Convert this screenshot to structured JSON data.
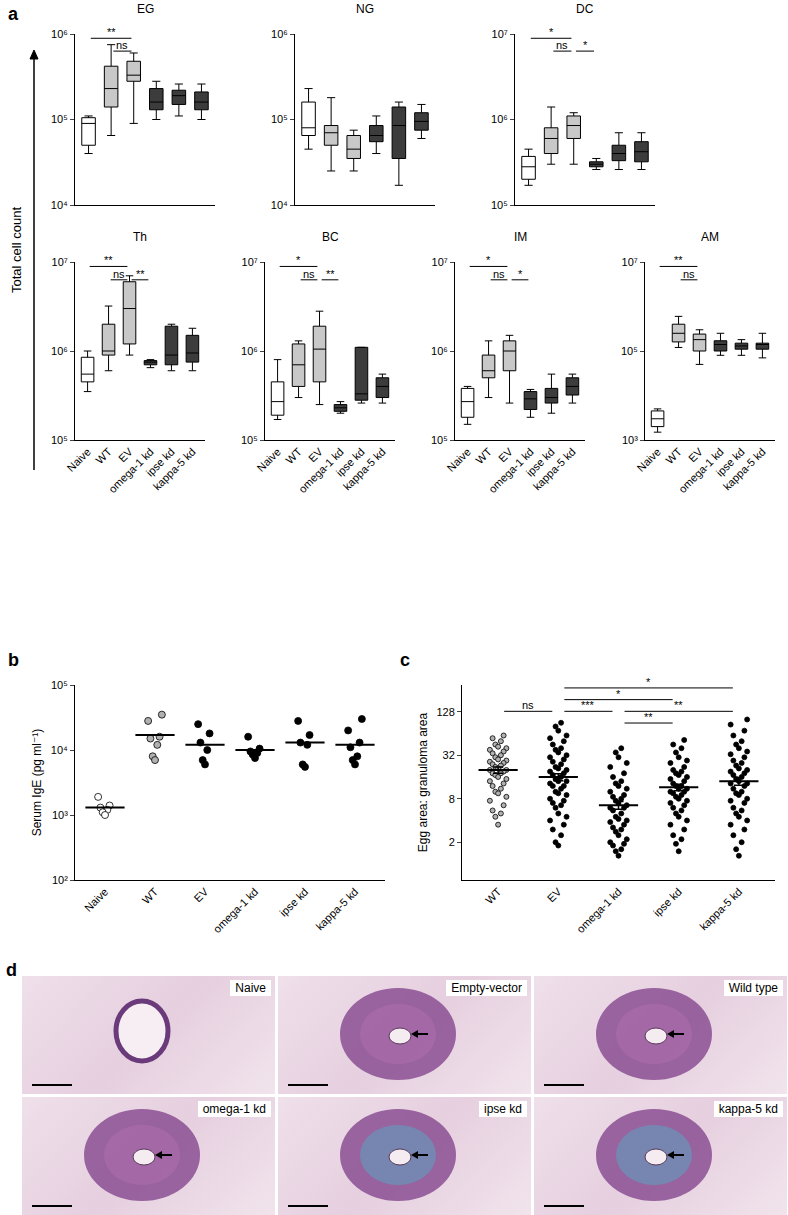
{
  "panel_a": {
    "label": "a",
    "ylabel": "Total cell count"
  },
  "chart_data": [
    {
      "type": "box",
      "title": "EG",
      "categories": [
        "Naive",
        "WT",
        "EV",
        "omega-1 kd",
        "ipse kd",
        "kappa-5 kd"
      ],
      "colors": [
        "#ffffff",
        "#c8c8c8",
        "#c8c8c8",
        "#3c3c3c",
        "#3c3c3c",
        "#3c3c3c"
      ],
      "min": [
        40000,
        65000,
        90000,
        100000,
        110000,
        100000
      ],
      "q1": [
        50000,
        140000,
        280000,
        130000,
        150000,
        130000
      ],
      "median": [
        90000,
        230000,
        330000,
        160000,
        190000,
        160000
      ],
      "q3": [
        105000,
        420000,
        480000,
        230000,
        220000,
        210000
      ],
      "max": [
        110000,
        750000,
        600000,
        280000,
        260000,
        260000
      ],
      "log": "y",
      "ylim": [
        10000,
        1000000
      ],
      "yticks": [
        {
          "value": 10000,
          "label": "10⁴"
        },
        {
          "value": 100000,
          "label": "10⁵"
        },
        {
          "value": 1000000,
          "label": "10⁶"
        }
      ],
      "annotations": [
        {
          "from": "Naive",
          "to": "EV",
          "label": "**"
        },
        {
          "from": "WT",
          "to": "EV",
          "label": "ns"
        }
      ],
      "tick_labels": "y"
    },
    {
      "type": "box",
      "title": "NG",
      "categories": [
        "Naive",
        "WT",
        "EV",
        "omega-1 kd",
        "ipse kd",
        "kappa-5 kd"
      ],
      "colors": [
        "#ffffff",
        "#c8c8c8",
        "#c8c8c8",
        "#3c3c3c",
        "#3c3c3c",
        "#3c3c3c"
      ],
      "min": [
        45000,
        25000,
        25000,
        40000,
        17000,
        60000
      ],
      "q1": [
        65000,
        50000,
        35000,
        55000,
        35000,
        75000
      ],
      "median": [
        80000,
        70000,
        45000,
        65000,
        85000,
        95000
      ],
      "q3": [
        160000,
        85000,
        65000,
        85000,
        140000,
        120000
      ],
      "max": [
        230000,
        180000,
        75000,
        110000,
        160000,
        150000
      ],
      "log": "y",
      "ylim": [
        10000,
        1000000
      ],
      "yticks": [
        {
          "value": 10000,
          "label": "10⁴"
        },
        {
          "value": 100000,
          "label": "10⁵"
        },
        {
          "value": 1000000,
          "label": "10⁶"
        }
      ],
      "tick_labels": "y"
    },
    {
      "type": "box",
      "title": "DC",
      "categories": [
        "Naive",
        "WT",
        "EV",
        "omega-1 kd",
        "ipse kd",
        "kappa-5 kd"
      ],
      "colors": [
        "#ffffff",
        "#c8c8c8",
        "#c8c8c8",
        "#3c3c3c",
        "#3c3c3c",
        "#3c3c3c"
      ],
      "min": [
        170000,
        300000,
        300000,
        260000,
        260000,
        260000
      ],
      "q1": [
        200000,
        400000,
        600000,
        280000,
        330000,
        320000
      ],
      "median": [
        280000,
        600000,
        850000,
        300000,
        400000,
        420000
      ],
      "q3": [
        370000,
        800000,
        1100000,
        320000,
        500000,
        550000
      ],
      "max": [
        450000,
        1400000,
        1200000,
        350000,
        700000,
        700000
      ],
      "log": "y",
      "ylim": [
        100000,
        10000000
      ],
      "yticks": [
        {
          "value": 100000,
          "label": "10⁵"
        },
        {
          "value": 1000000,
          "label": "10⁶"
        },
        {
          "value": 10000000,
          "label": "10⁷"
        }
      ],
      "annotations": [
        {
          "from": "Naive",
          "to": "EV",
          "label": "*"
        },
        {
          "from": "WT",
          "to": "EV",
          "label": "ns"
        },
        {
          "from": "EV",
          "to": "omega-1 kd",
          "label": "*"
        }
      ],
      "tick_labels": "y"
    },
    {
      "type": "box",
      "title": "Th",
      "categories": [
        "Naive",
        "WT",
        "EV",
        "omega-1 kd",
        "ipse kd",
        "kappa-5 kd"
      ],
      "colors": [
        "#ffffff",
        "#c8c8c8",
        "#c8c8c8",
        "#3c3c3c",
        "#3c3c3c",
        "#3c3c3c"
      ],
      "min": [
        350000,
        600000,
        900000,
        650000,
        600000,
        600000
      ],
      "q1": [
        450000,
        900000,
        1200000,
        700000,
        700000,
        750000
      ],
      "median": [
        550000,
        1000000,
        3000000,
        750000,
        900000,
        950000
      ],
      "q3": [
        850000,
        2000000,
        6000000,
        780000,
        1900000,
        1500000
      ],
      "max": [
        1000000,
        3200000,
        7000000,
        800000,
        2000000,
        1800000
      ],
      "log": "y",
      "ylim": [
        100000,
        10000000
      ],
      "yticks": [
        {
          "value": 100000,
          "label": "10⁵"
        },
        {
          "value": 1000000,
          "label": "10⁶"
        },
        {
          "value": 10000000,
          "label": "10⁷"
        }
      ],
      "annotations": [
        {
          "from": "Naive",
          "to": "EV",
          "label": "**"
        },
        {
          "from": "WT",
          "to": "EV",
          "label": "ns"
        },
        {
          "from": "EV",
          "to": "omega-1 kd",
          "label": "**"
        }
      ]
    },
    {
      "type": "box",
      "title": "BC",
      "categories": [
        "Naive",
        "WT",
        "EV",
        "omega-1 kd",
        "ipse kd",
        "kappa-5 kd"
      ],
      "colors": [
        "#ffffff",
        "#c8c8c8",
        "#c8c8c8",
        "#3c3c3c",
        "#3c3c3c",
        "#3c3c3c"
      ],
      "min": [
        170000,
        300000,
        250000,
        200000,
        260000,
        260000
      ],
      "q1": [
        190000,
        400000,
        450000,
        210000,
        280000,
        300000
      ],
      "median": [
        270000,
        700000,
        1050000,
        230000,
        330000,
        400000
      ],
      "q3": [
        450000,
        1200000,
        1900000,
        250000,
        1100000,
        500000
      ],
      "max": [
        800000,
        1300000,
        2800000,
        270000,
        1100000,
        550000
      ],
      "log": "y",
      "ylim": [
        100000,
        10000000
      ],
      "yticks": [
        {
          "value": 100000,
          "label": "10⁵"
        },
        {
          "value": 1000000,
          "label": "10⁶"
        },
        {
          "value": 10000000,
          "label": "10⁷"
        }
      ],
      "annotations": [
        {
          "from": "Naive",
          "to": "EV",
          "label": "*"
        },
        {
          "from": "WT",
          "to": "EV",
          "label": "ns"
        },
        {
          "from": "EV",
          "to": "omega-1 kd",
          "label": "**"
        }
      ]
    },
    {
      "type": "box",
      "title": "IM",
      "categories": [
        "Naive",
        "WT",
        "EV",
        "omega-1 kd",
        "ipse kd",
        "kappa-5 kd"
      ],
      "colors": [
        "#ffffff",
        "#c8c8c8",
        "#c8c8c8",
        "#3c3c3c",
        "#3c3c3c",
        "#3c3c3c"
      ],
      "min": [
        150000,
        300000,
        260000,
        180000,
        200000,
        260000
      ],
      "q1": [
        180000,
        500000,
        600000,
        220000,
        260000,
        320000
      ],
      "median": [
        270000,
        600000,
        1000000,
        290000,
        300000,
        400000
      ],
      "q3": [
        380000,
        900000,
        1300000,
        350000,
        380000,
        500000
      ],
      "max": [
        400000,
        1300000,
        1500000,
        370000,
        550000,
        550000
      ],
      "log": "y",
      "ylim": [
        100000,
        10000000
      ],
      "yticks": [
        {
          "value": 100000,
          "label": "10⁵"
        },
        {
          "value": 1000000,
          "label": "10⁶"
        },
        {
          "value": 10000000,
          "label": "10⁷"
        }
      ],
      "annotations": [
        {
          "from": "Naive",
          "to": "EV",
          "label": "*"
        },
        {
          "from": "WT",
          "to": "EV",
          "label": "ns"
        },
        {
          "from": "EV",
          "to": "omega-1 kd",
          "label": "*"
        }
      ]
    },
    {
      "type": "box",
      "title": "AM",
      "categories": [
        "Naive",
        "WT",
        "EV",
        "omega-1 kd",
        "ipse kd",
        "kappa-5 kd"
      ],
      "colors": [
        "#ffffff",
        "#c8c8c8",
        "#c8c8c8",
        "#3c3c3c",
        "#3c3c3c",
        "#3c3c3c"
      ],
      "min": [
        1500,
        120000,
        50000,
        80000,
        80000,
        70000
      ],
      "q1": [
        2000,
        160000,
        100000,
        100000,
        110000,
        110000
      ],
      "median": [
        3000,
        250000,
        180000,
        140000,
        130000,
        140000
      ],
      "q3": [
        4500,
        400000,
        240000,
        170000,
        150000,
        150000
      ],
      "max": [
        5000,
        600000,
        300000,
        250000,
        180000,
        250000
      ],
      "log": "y",
      "ylim": [
        1000,
        10000000
      ],
      "yticks": [
        {
          "value": 1000,
          "label": "10³"
        },
        {
          "value": 100000,
          "label": "10⁵"
        },
        {
          "value": 10000000,
          "label": "10⁷"
        }
      ],
      "annotations": [
        {
          "from": "Naive",
          "to": "EV",
          "label": "**"
        },
        {
          "from": "WT",
          "to": "EV",
          "label": "ns"
        }
      ]
    },
    {
      "type": "scatter",
      "panel_label": "b",
      "categories": [
        "Naive",
        "WT",
        "EV",
        "omega-1 kd",
        "ipse kd",
        "kappa-5 kd"
      ],
      "colors": [
        "#ffffff",
        "#b0b0b0",
        "#000000",
        "#000000",
        "#000000",
        "#000000"
      ],
      "values": [
        [
          1900,
          1400,
          1300,
          1200,
          1100,
          1000
        ],
        [
          35000,
          28000,
          16000,
          15000,
          12000,
          8000,
          7000
        ],
        [
          25000,
          18000,
          13000,
          10000,
          7000,
          6000
        ],
        [
          16000,
          10500,
          9500,
          9000,
          8500,
          7500
        ],
        [
          28000,
          17000,
          13000,
          12000,
          6000,
          5500
        ],
        [
          30000,
          20000,
          13000,
          11000,
          8000,
          7000,
          6000
        ]
      ],
      "means": [
        1300,
        17000,
        12000,
        10000,
        13000,
        12000
      ],
      "ylabel": "Serum IgE (pg ml⁻¹)",
      "log": "y",
      "ylim": [
        100,
        100000
      ],
      "yticks": [
        {
          "value": 100,
          "label": "10²"
        },
        {
          "value": 1000,
          "label": "10³"
        },
        {
          "value": 10000,
          "label": "10⁴"
        },
        {
          "value": 100000,
          "label": "10⁵"
        }
      ]
    },
    {
      "type": "scatter",
      "panel_label": "c",
      "categories": [
        "WT",
        "EV",
        "omega-1 kd",
        "ipse kd",
        "kappa-5 kd"
      ],
      "colors": [
        "#b0b0b0",
        "#000000",
        "#000000",
        "#000000",
        "#000000"
      ],
      "values": [
        [
          60,
          55,
          50,
          45,
          42,
          40,
          38,
          36,
          34,
          32,
          30,
          28,
          27,
          26,
          25,
          24,
          23,
          22,
          21,
          20,
          20,
          19,
          18,
          18,
          17,
          16,
          15,
          14,
          13,
          12,
          11,
          10,
          9.5,
          8.5,
          7.5,
          6.5,
          5.5,
          5,
          4.5,
          3.5
        ],
        [
          90,
          80,
          70,
          60,
          55,
          50,
          45,
          40,
          38,
          35,
          32,
          30,
          28,
          26,
          24,
          22,
          21,
          20,
          19,
          18,
          17,
          16,
          15,
          14,
          14,
          13,
          12,
          12,
          11,
          10,
          9.5,
          9,
          8,
          7.5,
          7,
          6.5,
          6,
          5,
          4.5,
          4,
          3.5,
          3,
          2.5,
          2,
          1.8
        ],
        [
          40,
          35,
          30,
          25,
          22,
          18,
          16,
          14,
          13,
          12,
          11,
          10,
          9,
          8.5,
          8,
          7.5,
          7,
          6.5,
          6,
          6,
          5.5,
          5,
          4.5,
          4.2,
          4,
          3.8,
          3.5,
          3.2,
          3,
          2.8,
          2.5,
          2.2,
          2,
          1.9,
          1.8,
          1.6,
          1.5,
          1.3
        ],
        [
          52,
          45,
          40,
          35,
          30,
          27,
          25,
          22,
          20,
          19,
          18,
          17,
          16,
          15,
          14,
          13,
          12,
          12,
          11,
          11,
          10,
          10,
          9.5,
          9,
          8.5,
          8,
          7.5,
          7,
          6.5,
          6,
          5.5,
          5,
          4.5,
          4,
          3.5,
          3,
          2.5,
          2.2,
          1.9,
          1.5
        ],
        [
          100,
          85,
          70,
          60,
          50,
          45,
          40,
          36,
          33,
          30,
          27,
          25,
          23,
          21,
          20,
          19,
          18,
          17,
          16,
          15,
          14,
          13,
          13,
          12,
          11,
          10,
          9.5,
          9,
          8,
          7.5,
          7,
          6,
          5.5,
          5,
          4.5,
          4,
          3.5,
          3,
          2.5,
          2,
          1.6,
          1.3
        ]
      ],
      "means": [
        20,
        16,
        6.5,
        11.5,
        14
      ],
      "errors": [
        2,
        1.8,
        0.8,
        1.2,
        1.7
      ],
      "ylabel": "Egg area: granuloma area",
      "log": "y",
      "ylim": [
        0.6,
        300
      ],
      "yticks": [
        2,
        8,
        32,
        128
      ],
      "annotations": [
        {
          "from": "EV",
          "to": "kappa-5 kd",
          "label": "*"
        },
        {
          "from": "EV",
          "to": "ipse kd",
          "label": "*"
        },
        {
          "from": "EV",
          "to": "omega-1 kd",
          "label": "***"
        },
        {
          "from": "WT",
          "to": "EV",
          "label": "ns"
        },
        {
          "from": "omega-1 kd",
          "to": "kappa-5 kd",
          "label": "**"
        },
        {
          "from": "omega-1 kd",
          "to": "ipse kd",
          "label": "**"
        }
      ]
    }
  ],
  "panel_d": {
    "label": "d",
    "images": [
      "Naive",
      "Empty-vector",
      "Wild type",
      "omega-1 kd",
      "ipse kd",
      "kappa-5 kd"
    ]
  }
}
